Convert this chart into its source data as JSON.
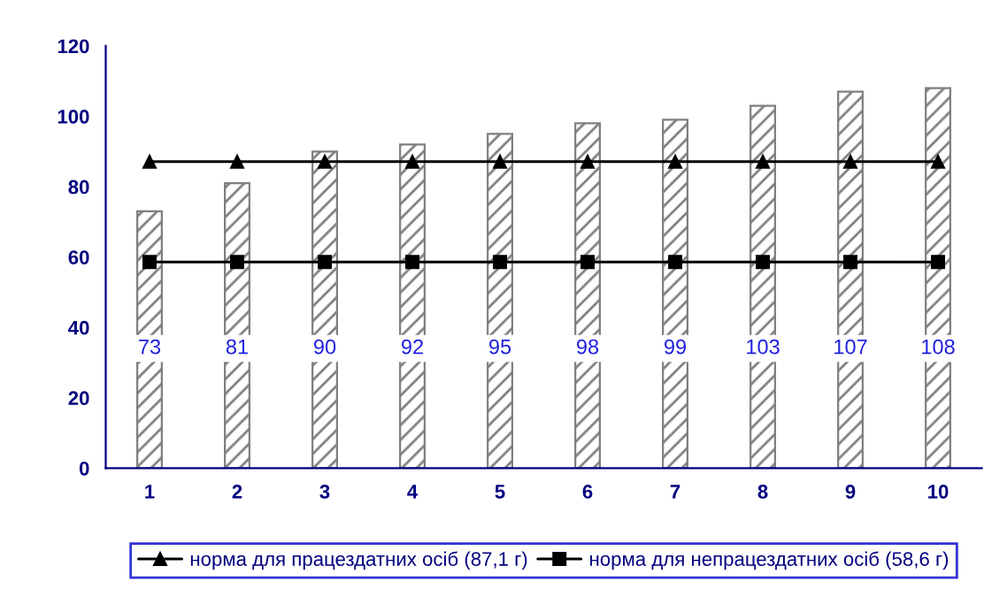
{
  "chart_data": {
    "type": "bar",
    "categories": [
      "1",
      "2",
      "3",
      "4",
      "5",
      "6",
      "7",
      "8",
      "9",
      "10"
    ],
    "series": [
      {
        "color": "#7f7f7f",
        "values": [
          73,
          81,
          90,
          92,
          95,
          98,
          99,
          103,
          107,
          108
        ],
        "value_labels": [
          "73",
          "81",
          "90",
          "92",
          "95",
          "98",
          "99",
          "103",
          "107",
          "108"
        ]
      },
      {
        "type": "line",
        "name": "норма для працездатних осіб (87,1 г)",
        "color": "#000000",
        "marker": "triangle",
        "values": [
          87.1,
          87.1,
          87.1,
          87.1,
          87.1,
          87.1,
          87.1,
          87.1,
          87.1,
          87.1
        ]
      },
      {
        "type": "line",
        "name": "норма для непрацездатних осіб (58,6 г)",
        "color": "#000000",
        "marker": "square",
        "values": [
          58.6,
          58.6,
          58.6,
          58.6,
          58.6,
          58.6,
          58.6,
          58.6,
          58.6,
          58.6
        ]
      }
    ],
    "ylim": [
      0,
      120
    ],
    "yticks": [
      0,
      20,
      40,
      60,
      80,
      100,
      120
    ],
    "legend": "bottom",
    "grid": false,
    "line_style": "solid"
  }
}
